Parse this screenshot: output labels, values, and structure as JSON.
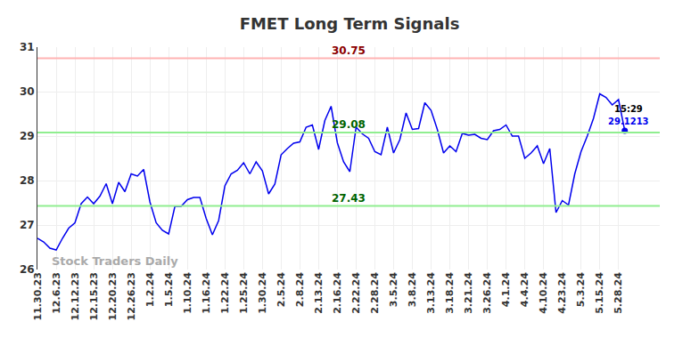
{
  "chart_data": {
    "type": "line",
    "title": "FMET Long Term Signals",
    "watermark": "Stock Traders Daily",
    "categories": [
      "11.30.23",
      null,
      null,
      "12.6.23",
      null,
      null,
      "12.12.23",
      null,
      null,
      "12.15.23",
      null,
      null,
      "12.20.23",
      null,
      null,
      "12.26.23",
      null,
      null,
      "1.2.24",
      null,
      null,
      "1.5.24",
      null,
      null,
      "1.10.24",
      null,
      null,
      "1.16.24",
      null,
      null,
      "1.22.24",
      null,
      null,
      "1.25.24",
      null,
      null,
      "1.30.24",
      null,
      null,
      "2.5.24",
      null,
      null,
      "2.8.24",
      null,
      null,
      "2.13.24",
      null,
      null,
      "2.16.24",
      null,
      null,
      "2.22.24",
      null,
      null,
      "2.28.24",
      null,
      null,
      "3.5.24",
      null,
      null,
      "3.8.24",
      null,
      null,
      "3.13.24",
      null,
      null,
      "3.18.24",
      null,
      null,
      "3.21.24",
      null,
      null,
      "3.26.24",
      null,
      null,
      "4.1.24",
      null,
      null,
      "4.4.24",
      null,
      null,
      "4.10.24",
      null,
      null,
      "4.23.24",
      null,
      null,
      "5.3.24",
      null,
      null,
      "5.15.24",
      null,
      null,
      "5.28.24",
      null
    ],
    "series": [
      {
        "color": "#0000ee",
        "values": [
          26.7,
          26.62,
          26.48,
          26.44,
          26.7,
          26.93,
          27.05,
          27.48,
          27.63,
          27.48,
          27.65,
          27.93,
          27.48,
          27.96,
          27.75,
          28.15,
          28.1,
          28.25,
          27.52,
          27.05,
          26.88,
          26.8,
          27.42,
          27.42,
          27.57,
          27.62,
          27.62,
          27.15,
          26.78,
          27.1,
          27.88,
          28.15,
          28.23,
          28.4,
          28.15,
          28.42,
          28.22,
          27.7,
          27.92,
          28.58,
          28.72,
          28.84,
          28.87,
          29.2,
          29.25,
          28.7,
          29.35,
          29.67,
          28.85,
          28.42,
          28.2,
          29.2,
          29.05,
          28.95,
          28.65,
          28.58,
          29.2,
          28.62,
          28.92,
          29.52,
          29.15,
          29.17,
          29.75,
          29.58,
          29.15,
          28.62,
          28.78,
          28.65,
          29.06,
          29.02,
          29.04,
          28.95,
          28.92,
          29.12,
          29.15,
          29.25,
          29.0,
          29.0,
          28.5,
          28.62,
          28.78,
          28.38,
          28.72,
          27.28,
          27.55,
          27.45,
          28.15,
          28.65,
          29.0,
          29.4,
          29.95,
          29.87,
          29.7,
          29.82,
          29.1213
        ]
      }
    ],
    "levels": [
      {
        "value": 30.75,
        "label": "30.75",
        "color": "#8b0000",
        "line_color": "#ffb3b3"
      },
      {
        "value": 29.08,
        "label": "29.08",
        "color": "#006400",
        "line_color": "#90ee90"
      },
      {
        "value": 27.43,
        "label": "27.43",
        "color": "#006400",
        "line_color": "#90ee90"
      }
    ],
    "last_point_labels": [
      {
        "label": "15:29",
        "color": "#000000"
      },
      {
        "label": "29.1213",
        "color": "#0000ee"
      }
    ],
    "ylim": [
      26,
      31
    ],
    "yticks": [
      26,
      27,
      28,
      29,
      30,
      31
    ],
    "grid": true
  }
}
